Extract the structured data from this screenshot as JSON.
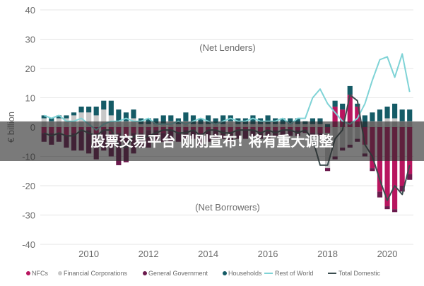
{
  "headline": "股票交易平台 刚刚宣布! 将有重大调整",
  "chart_data": {
    "type": "bar",
    "ylabel": "€ billion",
    "ylim": [
      -40,
      40
    ],
    "yticks": [
      "40",
      "30",
      "20",
      "10",
      "0",
      "-10",
      "-20",
      "-30",
      "-40"
    ],
    "xticks": [
      "2010",
      "2012",
      "2014",
      "2016",
      "2018",
      "2020"
    ],
    "annotations": [
      "(Net Lenders)",
      "(Net Borrowers)"
    ],
    "grid": true,
    "legend_position": "bottom",
    "legend": [
      "NFCs",
      "Financial Corporations",
      "General Government",
      "Households",
      "Rest of World",
      "Total Domestic"
    ],
    "colors": {
      "NFCs": "#b8165f",
      "Financial Corporations": "#c8c8c8",
      "General Government": "#6b1a4d",
      "Households": "#155b66",
      "Rest of World": "#7fd3d6",
      "Total Domestic": "#3b4d4f"
    },
    "quarters": [
      "2008Q3",
      "2008Q4",
      "2009Q1",
      "2009Q2",
      "2009Q3",
      "2009Q4",
      "2010Q1",
      "2010Q2",
      "2010Q3",
      "2010Q4",
      "2011Q1",
      "2011Q2",
      "2011Q3",
      "2011Q4",
      "2012Q1",
      "2012Q2",
      "2012Q3",
      "2012Q4",
      "2013Q1",
      "2013Q2",
      "2013Q3",
      "2013Q4",
      "2014Q1",
      "2014Q2",
      "2014Q3",
      "2014Q4",
      "2015Q1",
      "2015Q2",
      "2015Q3",
      "2015Q4",
      "2016Q1",
      "2016Q2",
      "2016Q3",
      "2016Q4",
      "2017Q1",
      "2017Q2",
      "2017Q3",
      "2017Q4",
      "2018Q1",
      "2018Q2",
      "2018Q3",
      "2018Q4",
      "2019Q1",
      "2019Q2",
      "2019Q3",
      "2019Q4",
      "2020Q1",
      "2020Q2",
      "2020Q3",
      "2020Q4"
    ],
    "series": [
      {
        "name": "NFCs",
        "kind": "bar",
        "values": [
          -2,
          -2,
          -2,
          -3,
          -2,
          -1,
          -1,
          -2,
          -1,
          -2,
          -2,
          -3,
          -2,
          -2,
          -1,
          -1,
          -2,
          -1,
          -2,
          -1,
          -1,
          -2,
          -1,
          -1,
          -1,
          -2,
          -1,
          -1,
          -1,
          -2,
          -1,
          -1,
          -1,
          -1,
          -1,
          -1,
          -2,
          -2,
          -2,
          7,
          6,
          11,
          7,
          -6,
          -14,
          -22,
          -27,
          -28,
          -20,
          -16
        ]
      },
      {
        "name": "Financial Corporations",
        "kind": "bar",
        "values": [
          3,
          2,
          3,
          3,
          4,
          5,
          5,
          4,
          6,
          4,
          2,
          2,
          3,
          1,
          1,
          1,
          1,
          2,
          1,
          2,
          1,
          1,
          1,
          1,
          1,
          2,
          1,
          1,
          1,
          1,
          1,
          1,
          1,
          1,
          1,
          1,
          1,
          1,
          -12,
          -10,
          -7,
          -6,
          -4,
          -3,
          2,
          2,
          3,
          3,
          2,
          2
        ]
      },
      {
        "name": "General Government",
        "kind": "bar",
        "values": [
          -3,
          -4,
          -3,
          -4,
          -6,
          -7,
          -8,
          -9,
          -7,
          -8,
          -11,
          -9,
          -7,
          -5,
          -6,
          -4,
          -3,
          -4,
          -3,
          -3,
          -3,
          -4,
          -4,
          -3,
          -3,
          -3,
          -3,
          -3,
          -2,
          -2,
          -3,
          -2,
          -2,
          -2,
          -2,
          -1,
          -1,
          -1,
          -1,
          -1,
          -1,
          -1,
          -1,
          -1,
          -1,
          -2,
          -1,
          -1,
          -2,
          -2
        ]
      },
      {
        "name": "Households",
        "kind": "bar",
        "values": [
          1,
          1,
          1,
          1,
          1,
          2,
          2,
          3,
          3,
          5,
          4,
          3,
          3,
          2,
          2,
          2,
          3,
          2,
          2,
          3,
          3,
          2,
          3,
          2,
          3,
          2,
          2,
          2,
          3,
          2,
          3,
          2,
          2,
          2,
          2,
          1,
          2,
          2,
          1,
          2,
          2,
          3,
          1,
          4,
          3,
          4,
          4,
          5,
          4,
          4
        ]
      },
      {
        "name": "Rest of World",
        "kind": "line",
        "values": [
          4,
          3,
          4,
          2,
          2,
          3,
          1,
          -1,
          1,
          2,
          2,
          3,
          2,
          2,
          3,
          1,
          1,
          1,
          2,
          1,
          2,
          3,
          2,
          1,
          2,
          3,
          2,
          2,
          3,
          2,
          2,
          2,
          3,
          1,
          3,
          3,
          10,
          13,
          8,
          5,
          2,
          1,
          3,
          8,
          16,
          23,
          24,
          17,
          25,
          12
        ]
      },
      {
        "name": "Total Domestic",
        "kind": "line",
        "values": [
          -2,
          -3,
          -2,
          -3,
          -3,
          -1,
          -2,
          -3,
          -1,
          -1,
          -6,
          -7,
          -3,
          -4,
          -3,
          -2,
          -1,
          -1,
          -2,
          -2,
          -1,
          -3,
          -1,
          -1,
          -2,
          -2,
          -1,
          -1,
          -1,
          -2,
          -1,
          -2,
          -1,
          -1,
          -2,
          -1,
          -4,
          -13,
          -13,
          -4,
          -1,
          11,
          9,
          -6,
          -10,
          -18,
          -25,
          -20,
          -23,
          -13
        ]
      }
    ]
  }
}
